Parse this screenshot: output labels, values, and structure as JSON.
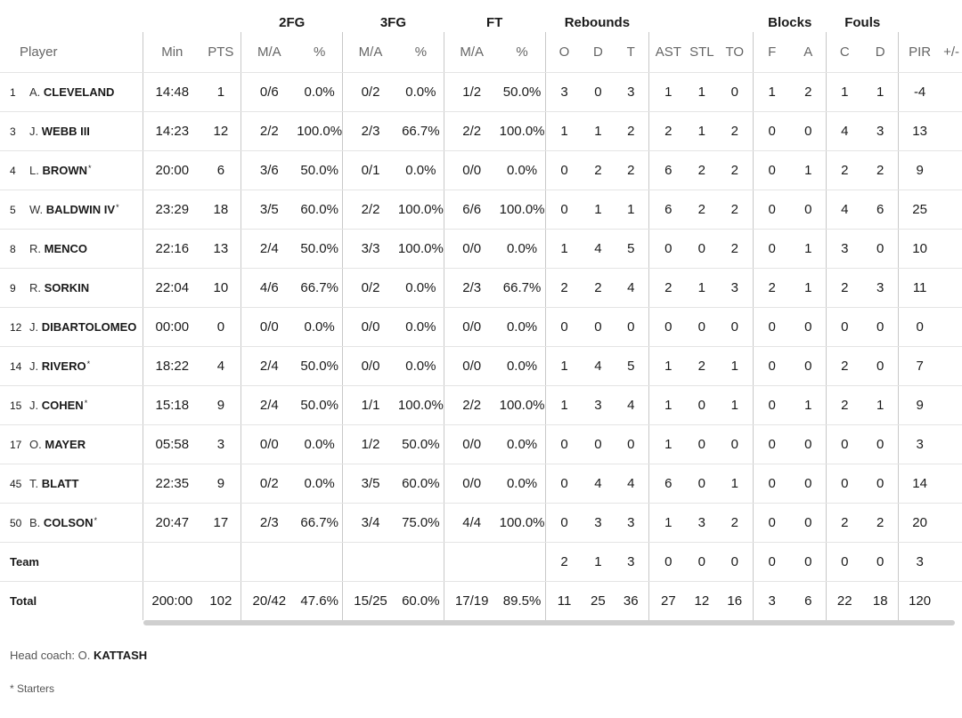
{
  "groups": {
    "fg2": "2FG",
    "fg3": "3FG",
    "ft": "FT",
    "rebounds": "Rebounds",
    "blocks": "Blocks",
    "fouls": "Fouls"
  },
  "columns": {
    "player": "Player",
    "min": "Min",
    "pts": "PTS",
    "fg2_ma": "M/A",
    "fg2_pct": "%",
    "fg3_ma": "M/A",
    "fg3_pct": "%",
    "ft_ma": "M/A",
    "ft_pct": "%",
    "reb_o": "O",
    "reb_d": "D",
    "reb_t": "T",
    "ast": "AST",
    "stl": "STL",
    "to": "TO",
    "blk_f": "F",
    "blk_a": "A",
    "foul_c": "C",
    "foul_d": "D",
    "pir": "PIR",
    "pm": "+/-"
  },
  "players": [
    {
      "num": "1",
      "init": "A.",
      "last": "CLEVELAND",
      "star": "",
      "min": "14:48",
      "pts": "1",
      "fg2": "0/6",
      "fg2p": "0.0%",
      "fg3": "0/2",
      "fg3p": "0.0%",
      "ft": "1/2",
      "ftp": "50.0%",
      "o": "3",
      "d": "0",
      "t": "3",
      "ast": "1",
      "stl": "1",
      "to": "0",
      "bf": "1",
      "ba": "2",
      "fc": "1",
      "fd": "1",
      "pir": "-4"
    },
    {
      "num": "3",
      "init": "J.",
      "last": "WEBB III",
      "star": "",
      "min": "14:23",
      "pts": "12",
      "fg2": "2/2",
      "fg2p": "100.0%",
      "fg3": "2/3",
      "fg3p": "66.7%",
      "ft": "2/2",
      "ftp": "100.0%",
      "o": "1",
      "d": "1",
      "t": "2",
      "ast": "2",
      "stl": "1",
      "to": "2",
      "bf": "0",
      "ba": "0",
      "fc": "4",
      "fd": "3",
      "pir": "13"
    },
    {
      "num": "4",
      "init": "L.",
      "last": "BROWN",
      "star": "*",
      "min": "20:00",
      "pts": "6",
      "fg2": "3/6",
      "fg2p": "50.0%",
      "fg3": "0/1",
      "fg3p": "0.0%",
      "ft": "0/0",
      "ftp": "0.0%",
      "o": "0",
      "d": "2",
      "t": "2",
      "ast": "6",
      "stl": "2",
      "to": "2",
      "bf": "0",
      "ba": "1",
      "fc": "2",
      "fd": "2",
      "pir": "9"
    },
    {
      "num": "5",
      "init": "W.",
      "last": "BALDWIN IV",
      "star": "*",
      "min": "23:29",
      "pts": "18",
      "fg2": "3/5",
      "fg2p": "60.0%",
      "fg3": "2/2",
      "fg3p": "100.0%",
      "ft": "6/6",
      "ftp": "100.0%",
      "o": "0",
      "d": "1",
      "t": "1",
      "ast": "6",
      "stl": "2",
      "to": "2",
      "bf": "0",
      "ba": "0",
      "fc": "4",
      "fd": "6",
      "pir": "25"
    },
    {
      "num": "8",
      "init": "R.",
      "last": "MENCO",
      "star": "",
      "min": "22:16",
      "pts": "13",
      "fg2": "2/4",
      "fg2p": "50.0%",
      "fg3": "3/3",
      "fg3p": "100.0%",
      "ft": "0/0",
      "ftp": "0.0%",
      "o": "1",
      "d": "4",
      "t": "5",
      "ast": "0",
      "stl": "0",
      "to": "2",
      "bf": "0",
      "ba": "1",
      "fc": "3",
      "fd": "0",
      "pir": "10"
    },
    {
      "num": "9",
      "init": "R.",
      "last": "SORKIN",
      "star": "",
      "min": "22:04",
      "pts": "10",
      "fg2": "4/6",
      "fg2p": "66.7%",
      "fg3": "0/2",
      "fg3p": "0.0%",
      "ft": "2/3",
      "ftp": "66.7%",
      "o": "2",
      "d": "2",
      "t": "4",
      "ast": "2",
      "stl": "1",
      "to": "3",
      "bf": "2",
      "ba": "1",
      "fc": "2",
      "fd": "3",
      "pir": "11"
    },
    {
      "num": "12",
      "init": "J.",
      "last": "DIBARTOLOMEO",
      "star": "",
      "min": "00:00",
      "pts": "0",
      "fg2": "0/0",
      "fg2p": "0.0%",
      "fg3": "0/0",
      "fg3p": "0.0%",
      "ft": "0/0",
      "ftp": "0.0%",
      "o": "0",
      "d": "0",
      "t": "0",
      "ast": "0",
      "stl": "0",
      "to": "0",
      "bf": "0",
      "ba": "0",
      "fc": "0",
      "fd": "0",
      "pir": "0"
    },
    {
      "num": "14",
      "init": "J.",
      "last": "RIVERO",
      "star": "*",
      "min": "18:22",
      "pts": "4",
      "fg2": "2/4",
      "fg2p": "50.0%",
      "fg3": "0/0",
      "fg3p": "0.0%",
      "ft": "0/0",
      "ftp": "0.0%",
      "o": "1",
      "d": "4",
      "t": "5",
      "ast": "1",
      "stl": "2",
      "to": "1",
      "bf": "0",
      "ba": "0",
      "fc": "2",
      "fd": "0",
      "pir": "7"
    },
    {
      "num": "15",
      "init": "J.",
      "last": "COHEN",
      "star": "*",
      "min": "15:18",
      "pts": "9",
      "fg2": "2/4",
      "fg2p": "50.0%",
      "fg3": "1/1",
      "fg3p": "100.0%",
      "ft": "2/2",
      "ftp": "100.0%",
      "o": "1",
      "d": "3",
      "t": "4",
      "ast": "1",
      "stl": "0",
      "to": "1",
      "bf": "0",
      "ba": "1",
      "fc": "2",
      "fd": "1",
      "pir": "9"
    },
    {
      "num": "17",
      "init": "O.",
      "last": "MAYER",
      "star": "",
      "min": "05:58",
      "pts": "3",
      "fg2": "0/0",
      "fg2p": "0.0%",
      "fg3": "1/2",
      "fg3p": "50.0%",
      "ft": "0/0",
      "ftp": "0.0%",
      "o": "0",
      "d": "0",
      "t": "0",
      "ast": "1",
      "stl": "0",
      "to": "0",
      "bf": "0",
      "ba": "0",
      "fc": "0",
      "fd": "0",
      "pir": "3"
    },
    {
      "num": "45",
      "init": "T.",
      "last": "BLATT",
      "star": "",
      "min": "22:35",
      "pts": "9",
      "fg2": "0/2",
      "fg2p": "0.0%",
      "fg3": "3/5",
      "fg3p": "60.0%",
      "ft": "0/0",
      "ftp": "0.0%",
      "o": "0",
      "d": "4",
      "t": "4",
      "ast": "6",
      "stl": "0",
      "to": "1",
      "bf": "0",
      "ba": "0",
      "fc": "0",
      "fd": "0",
      "pir": "14"
    },
    {
      "num": "50",
      "init": "B.",
      "last": "COLSON",
      "star": "*",
      "min": "20:47",
      "pts": "17",
      "fg2": "2/3",
      "fg2p": "66.7%",
      "fg3": "3/4",
      "fg3p": "75.0%",
      "ft": "4/4",
      "ftp": "100.0%",
      "o": "0",
      "d": "3",
      "t": "3",
      "ast": "1",
      "stl": "3",
      "to": "2",
      "bf": "0",
      "ba": "0",
      "fc": "2",
      "fd": "2",
      "pir": "20"
    }
  ],
  "team": {
    "label": "Team",
    "o": "2",
    "d": "1",
    "t": "3",
    "ast": "0",
    "stl": "0",
    "to": "0",
    "bf": "0",
    "ba": "0",
    "fc": "0",
    "fd": "0",
    "pir": "3"
  },
  "total": {
    "label": "Total",
    "min": "200:00",
    "pts": "102",
    "fg2": "20/42",
    "fg2p": "47.6%",
    "fg3": "15/25",
    "fg3p": "60.0%",
    "ft": "17/19",
    "ftp": "89.5%",
    "o": "11",
    "d": "25",
    "t": "36",
    "ast": "27",
    "stl": "12",
    "to": "16",
    "bf": "3",
    "ba": "6",
    "fc": "22",
    "fd": "18",
    "pir": "120"
  },
  "footer": {
    "coach_label": "Head coach:",
    "coach_init": "O.",
    "coach_last": "KATTASH",
    "starters_note": "* Starters"
  }
}
